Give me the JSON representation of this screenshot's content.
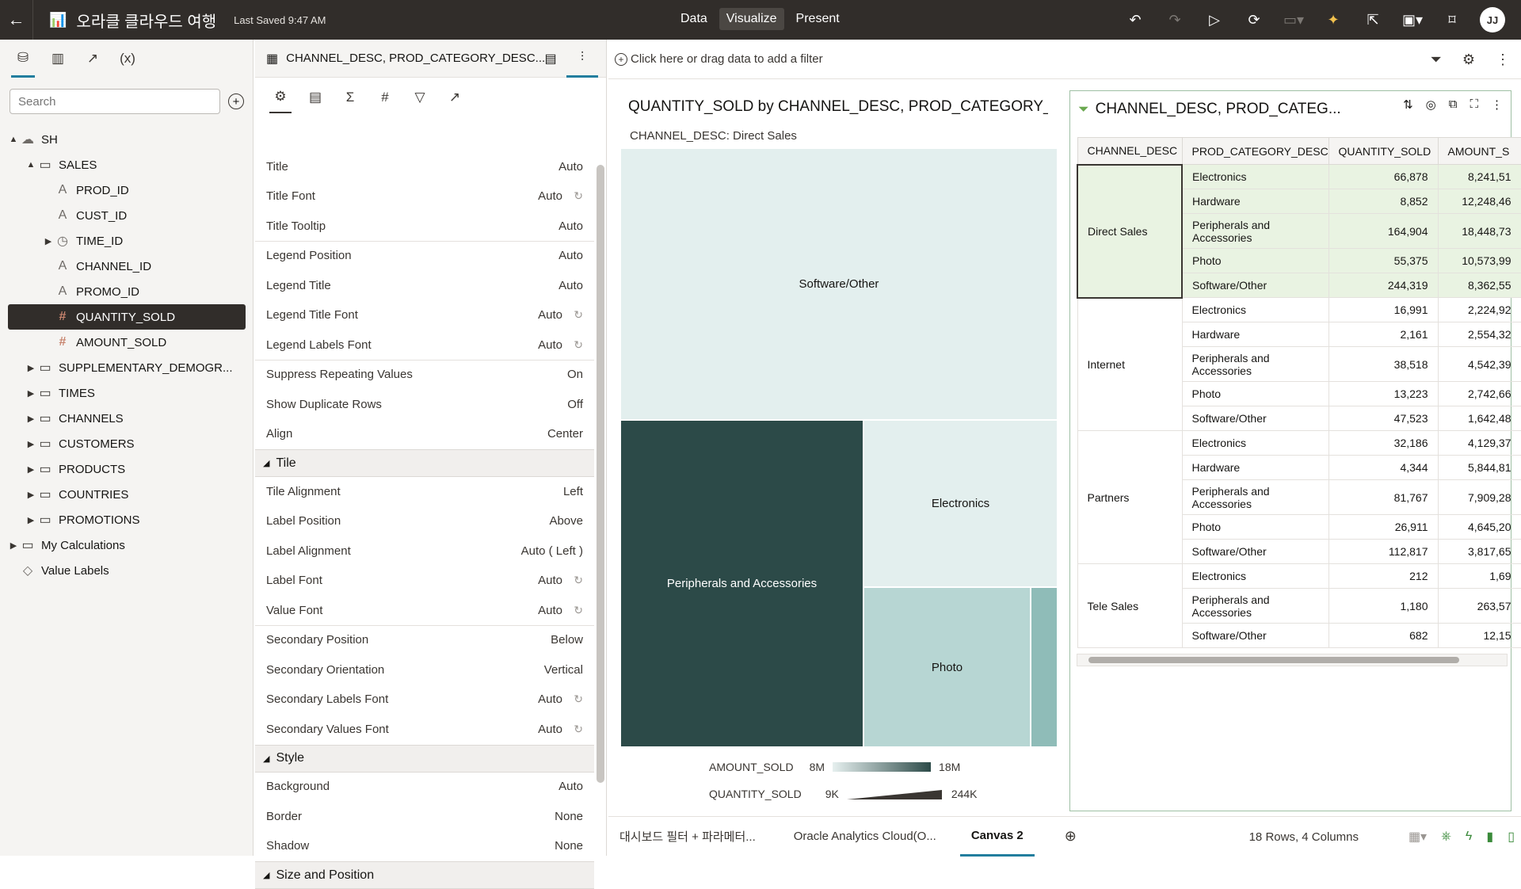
{
  "topbar": {
    "title": "오라클 클라우드 여행",
    "saved": "Last Saved 9:47 AM",
    "modes": [
      "Data",
      "Visualize",
      "Present"
    ],
    "active_mode": "Visualize",
    "avatar": "JJ"
  },
  "left": {
    "search_placeholder": "Search",
    "tree": [
      {
        "label": "SH",
        "level": 0,
        "tog": "▲",
        "icon": "cloud"
      },
      {
        "label": "SALES",
        "level": 1,
        "tog": "▲",
        "icon": "folder"
      },
      {
        "label": "PROD_ID",
        "level": 2,
        "tog": "",
        "icon": "attr"
      },
      {
        "label": "CUST_ID",
        "level": 2,
        "tog": "",
        "icon": "attr"
      },
      {
        "label": "TIME_ID",
        "level": 2,
        "tog": "▶",
        "icon": "time"
      },
      {
        "label": "CHANNEL_ID",
        "level": 2,
        "tog": "",
        "icon": "attr"
      },
      {
        "label": "PROMO_ID",
        "level": 2,
        "tog": "",
        "icon": "attr"
      },
      {
        "label": "QUANTITY_SOLD",
        "level": 2,
        "tog": "",
        "icon": "measure",
        "selected": true
      },
      {
        "label": "AMOUNT_SOLD",
        "level": 2,
        "tog": "",
        "icon": "measure"
      },
      {
        "label": "SUPPLEMENTARY_DEMOGR...",
        "level": 1,
        "tog": "▶",
        "icon": "folder"
      },
      {
        "label": "TIMES",
        "level": 1,
        "tog": "▶",
        "icon": "folder"
      },
      {
        "label": "CHANNELS",
        "level": 1,
        "tog": "▶",
        "icon": "folder"
      },
      {
        "label": "CUSTOMERS",
        "level": 1,
        "tog": "▶",
        "icon": "folder"
      },
      {
        "label": "PRODUCTS",
        "level": 1,
        "tog": "▶",
        "icon": "folder"
      },
      {
        "label": "COUNTRIES",
        "level": 1,
        "tog": "▶",
        "icon": "folder"
      },
      {
        "label": "PROMOTIONS",
        "level": 1,
        "tog": "▶",
        "icon": "folder"
      },
      {
        "label": "My Calculations",
        "level": 0,
        "tog": "▶",
        "icon": "folder"
      },
      {
        "label": "Value Labels",
        "level": 0,
        "tog": "",
        "icon": "tag"
      }
    ]
  },
  "props": {
    "header": "CHANNEL_DESC, PROD_CATEGORY_DESC...",
    "rows": [
      {
        "type": "row",
        "label": "Title",
        "value": "Auto"
      },
      {
        "type": "row",
        "label": "Title Font",
        "value": "Auto",
        "reset": true
      },
      {
        "type": "row",
        "label": "Title Tooltip",
        "value": "Auto",
        "sep": true
      },
      {
        "type": "row",
        "label": "Legend Position",
        "value": "Auto"
      },
      {
        "type": "row",
        "label": "Legend Title",
        "value": "Auto"
      },
      {
        "type": "row",
        "label": "Legend Title Font",
        "value": "Auto",
        "reset": true
      },
      {
        "type": "row",
        "label": "Legend Labels Font",
        "value": "Auto",
        "reset": true,
        "sep": true
      },
      {
        "type": "row",
        "label": "Suppress Repeating Values",
        "value": "On"
      },
      {
        "type": "row",
        "label": "Show Duplicate Rows",
        "value": "Off"
      },
      {
        "type": "row",
        "label": "Align",
        "value": "Center"
      },
      {
        "type": "section",
        "label": "Tile"
      },
      {
        "type": "row",
        "label": "Tile Alignment",
        "value": "Left"
      },
      {
        "type": "row",
        "label": "Label Position",
        "value": "Above"
      },
      {
        "type": "row",
        "label": "Label Alignment",
        "value": "Auto ( Left )"
      },
      {
        "type": "row",
        "label": "Label Font",
        "value": "Auto",
        "reset": true
      },
      {
        "type": "row",
        "label": "Value Font",
        "value": "Auto",
        "reset": true,
        "sep": true
      },
      {
        "type": "row",
        "label": "Secondary Position",
        "value": "Below"
      },
      {
        "type": "row",
        "label": "Secondary Orientation",
        "value": "Vertical"
      },
      {
        "type": "row",
        "label": "Secondary Labels Font",
        "value": "Auto",
        "reset": true
      },
      {
        "type": "row",
        "label": "Secondary Values Font",
        "value": "Auto",
        "reset": true
      },
      {
        "type": "section",
        "label": "Style"
      },
      {
        "type": "row",
        "label": "Background",
        "value": "Auto"
      },
      {
        "type": "row",
        "label": "Border",
        "value": "None"
      },
      {
        "type": "row",
        "label": "Shadow",
        "value": "None"
      },
      {
        "type": "section",
        "label": "Size and Position"
      }
    ]
  },
  "filterbar": {
    "placeholder": "Click here or drag data to add a filter"
  },
  "treemap": {
    "title": "QUANTITY_SOLD by CHANNEL_DESC, PROD_CATEGORY_DES...",
    "sub_label": "CHANNEL_DESC:",
    "sub_value": "Direct Sales",
    "tiles": [
      {
        "label": "Software/Other",
        "color": "#e3efee",
        "text": "#161513"
      },
      {
        "label": "Peripherals and Accessories",
        "color": "#2c4a48",
        "text": "#ffffff"
      },
      {
        "label": "Electronics",
        "color": "#e3efee",
        "text": "#161513"
      },
      {
        "label": "Photo",
        "color": "#b7d6d3",
        "text": "#161513"
      },
      {
        "label": "",
        "color": "#8fbcb8",
        "text": "#161513"
      }
    ],
    "legend": {
      "color_label": "AMOUNT_SOLD",
      "color_min": "8M",
      "color_max": "18M",
      "size_label": "QUANTITY_SOLD",
      "size_min": "9K",
      "size_max": "244K"
    }
  },
  "table": {
    "title": "CHANNEL_DESC, PROD_CATEG...",
    "headers": [
      "CHANNEL_DESC",
      "PROD_CATEGORY_DESC",
      "QUANTITY_SOLD",
      "AMOUNT_S"
    ],
    "groups": [
      {
        "channel": "Direct Sales",
        "highlight": true,
        "rows": [
          [
            "Electronics",
            "66,878",
            "8,241,51"
          ],
          [
            "Hardware",
            "8,852",
            "12,248,46"
          ],
          [
            "Peripherals and Accessories",
            "164,904",
            "18,448,73"
          ],
          [
            "Photo",
            "55,375",
            "10,573,99"
          ],
          [
            "Software/Other",
            "244,319",
            "8,362,55"
          ]
        ]
      },
      {
        "channel": "Internet",
        "highlight": false,
        "rows": [
          [
            "Electronics",
            "16,991",
            "2,224,92"
          ],
          [
            "Hardware",
            "2,161",
            "2,554,32"
          ],
          [
            "Peripherals and Accessories",
            "38,518",
            "4,542,39"
          ],
          [
            "Photo",
            "13,223",
            "2,742,66"
          ],
          [
            "Software/Other",
            "47,523",
            "1,642,48"
          ]
        ]
      },
      {
        "channel": "Partners",
        "highlight": false,
        "rows": [
          [
            "Electronics",
            "32,186",
            "4,129,37"
          ],
          [
            "Hardware",
            "4,344",
            "5,844,81"
          ],
          [
            "Peripherals and Accessories",
            "81,767",
            "7,909,28"
          ],
          [
            "Photo",
            "26,911",
            "4,645,20"
          ],
          [
            "Software/Other",
            "112,817",
            "3,817,65"
          ]
        ]
      },
      {
        "channel": "Tele Sales",
        "highlight": false,
        "rows": [
          [
            "Electronics",
            "212",
            "1,69"
          ],
          [
            "Peripherals and Accessories",
            "1,180",
            "263,57"
          ],
          [
            "Software/Other",
            "682",
            "12,15"
          ]
        ]
      }
    ]
  },
  "bottom": {
    "tabs": [
      "대시보드 필터 + 파라메터...",
      "Oracle Analytics Cloud(O...",
      "Canvas 2"
    ],
    "active_tab": "Canvas 2",
    "status": "18 Rows, 4 Columns"
  }
}
